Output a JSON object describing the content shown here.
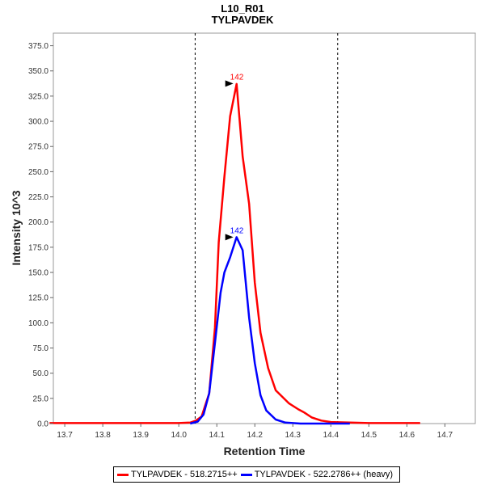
{
  "chart_data": {
    "type": "line",
    "title": "L10_R01",
    "subtitle": "TYLPAVDEK",
    "xlabel": "Retention Time",
    "ylabel": "Intensity 10^3",
    "xlim": [
      13.67,
      14.78
    ],
    "ylim": [
      0,
      387.5
    ],
    "xticks": [
      "13.7",
      "13.8",
      "13.9",
      "14.0",
      "14.1",
      "14.2",
      "14.3",
      "14.4",
      "14.5",
      "14.6",
      "14.7"
    ],
    "yticks": [
      "0.0",
      "25.0",
      "50.0",
      "75.0",
      "100.0",
      "125.0",
      "150.0",
      "175.0",
      "200.0",
      "225.0",
      "250.0",
      "275.0",
      "300.0",
      "325.0",
      "350.0",
      "375.0"
    ],
    "vlines": [
      14.043,
      14.418
    ],
    "legend_position": "bottom",
    "series": [
      {
        "name": "TYLPAVDEK - 518.2715++",
        "color": "#ff0000",
        "peak_label": "142",
        "peak": [
          14.152,
          337.5
        ],
        "x": [
          13.66,
          13.7,
          13.8,
          13.9,
          13.95,
          14.0,
          14.03,
          14.045,
          14.06,
          14.08,
          14.095,
          14.105,
          14.12,
          14.135,
          14.152,
          14.168,
          14.185,
          14.2,
          14.215,
          14.235,
          14.255,
          14.29,
          14.315,
          14.33,
          14.35,
          14.375,
          14.4,
          14.45,
          14.5,
          14.55,
          14.6,
          14.635
        ],
        "y": [
          0.5,
          0.5,
          0.5,
          0.5,
          0.5,
          0.5,
          1,
          3,
          7,
          30,
          95,
          180,
          245,
          305,
          337,
          265,
          218,
          140,
          90,
          55,
          33,
          20,
          14,
          11,
          6,
          3,
          1.5,
          1,
          0.5,
          0.5,
          0.5,
          0.5
        ]
      },
      {
        "name": "TYLPAVDEK - 522.2786++ (heavy)",
        "color": "#0000ff",
        "peak_label": "142",
        "peak": [
          14.152,
          185
        ],
        "x": [
          14.03,
          14.05,
          14.065,
          14.08,
          14.095,
          14.11,
          14.12,
          14.135,
          14.152,
          14.168,
          14.185,
          14.2,
          14.215,
          14.23,
          14.255,
          14.28,
          14.3,
          14.32,
          14.4,
          14.45
        ],
        "y": [
          0,
          2,
          9,
          30,
          80,
          130,
          150,
          165,
          185,
          172,
          105,
          60,
          28,
          13,
          4,
          1,
          0.5,
          0,
          0,
          0
        ]
      }
    ]
  }
}
